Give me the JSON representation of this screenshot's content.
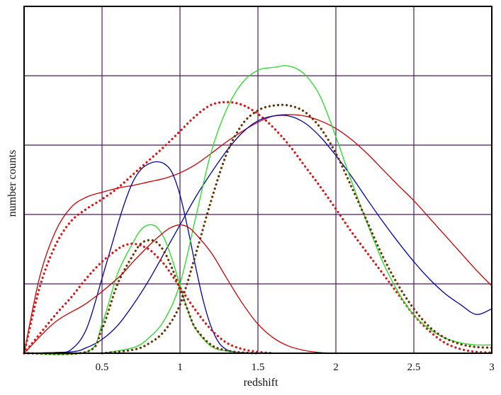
{
  "chart_data": {
    "type": "line",
    "xlabel": "redshift",
    "ylabel": "number counts",
    "xlim": [
      0,
      3
    ],
    "ylim": [
      0,
      5
    ],
    "xticks": [
      0.5,
      1,
      1.5,
      2,
      2.5,
      3
    ],
    "xtick_labels": [
      "0.5",
      "1",
      "1.5",
      "2",
      "2.5",
      "3"
    ],
    "yticks": [
      1,
      2,
      3,
      4
    ],
    "grid": true,
    "grid_color": "#4a1a5c",
    "frame_color": "#000000",
    "series": [
      {
        "color": "#cc0000",
        "style": "solid",
        "x": [
          0,
          0.1,
          0.2,
          0.3,
          0.4,
          0.5,
          0.6,
          0.7,
          0.8,
          0.9,
          1.0,
          1.1,
          1.2,
          1.3,
          1.4,
          1.5,
          1.6,
          1.7,
          1.8,
          1.9,
          2.0,
          2.1,
          2.2,
          2.3,
          2.4,
          2.5,
          2.6,
          2.7,
          2.8,
          2.9,
          3.0
        ],
        "y": [
          0,
          1.1,
          1.75,
          2.1,
          2.25,
          2.32,
          2.38,
          2.42,
          2.47,
          2.52,
          2.6,
          2.72,
          2.88,
          3.05,
          3.2,
          3.33,
          3.42,
          3.44,
          3.42,
          3.35,
          3.24,
          3.08,
          2.88,
          2.65,
          2.42,
          2.2,
          1.95,
          1.7,
          1.45,
          1.2,
          0.97
        ]
      },
      {
        "color": "#dd1111",
        "style": "dotted",
        "x": [
          0,
          0.1,
          0.2,
          0.3,
          0.4,
          0.5,
          0.6,
          0.7,
          0.8,
          0.9,
          1.0,
          1.1,
          1.2,
          1.3,
          1.4,
          1.5,
          1.6,
          1.7,
          1.8,
          1.9,
          2.0,
          2.1,
          2.2,
          2.3,
          2.4,
          2.5,
          2.6,
          2.7,
          2.8,
          2.9,
          3.0
        ],
        "y": [
          0,
          0.95,
          1.55,
          1.9,
          2.08,
          2.22,
          2.38,
          2.58,
          2.78,
          2.98,
          3.2,
          3.42,
          3.58,
          3.62,
          3.58,
          3.45,
          3.25,
          3.0,
          2.7,
          2.4,
          2.08,
          1.75,
          1.45,
          1.15,
          0.85,
          0.55,
          0.32,
          0.15,
          0.06,
          0.02,
          0.01
        ]
      },
      {
        "color": "#0000aa",
        "style": "solid",
        "x": [
          0,
          0.2,
          0.3,
          0.4,
          0.5,
          0.6,
          0.65,
          0.7,
          0.75,
          0.8,
          0.85,
          0.9,
          0.95,
          1.0,
          1.05,
          1.1,
          1.15,
          1.2,
          1.25,
          1.3,
          1.35,
          1.4,
          1.5
        ],
        "y": [
          0,
          0.01,
          0.05,
          0.35,
          1.08,
          1.85,
          2.2,
          2.48,
          2.65,
          2.73,
          2.76,
          2.73,
          2.6,
          2.28,
          1.8,
          1.25,
          0.75,
          0.38,
          0.15,
          0.05,
          0.02,
          0.01,
          0
        ]
      },
      {
        "color": "#0000aa",
        "style": "solid",
        "x": [
          0,
          0.3,
          0.4,
          0.5,
          0.6,
          0.7,
          0.8,
          0.9,
          1.0,
          1.1,
          1.2,
          1.3,
          1.4,
          1.5,
          1.6,
          1.7,
          1.8,
          1.9,
          2.0,
          2.1,
          2.2,
          2.3,
          2.4,
          2.5,
          2.6,
          2.7,
          2.8,
          2.9,
          3.0
        ],
        "y": [
          0,
          0.02,
          0.08,
          0.2,
          0.4,
          0.7,
          1.05,
          1.45,
          1.85,
          2.25,
          2.6,
          2.92,
          3.18,
          3.35,
          3.42,
          3.42,
          3.32,
          3.12,
          2.85,
          2.55,
          2.22,
          1.9,
          1.6,
          1.32,
          1.07,
          0.86,
          0.7,
          0.56,
          0.64
        ]
      },
      {
        "color": "#22dd22",
        "style": "solid",
        "x": [
          0,
          0.4,
          0.5,
          0.6,
          0.7,
          0.75,
          0.8,
          0.85,
          0.9,
          0.95,
          1.0,
          1.05,
          1.1,
          1.2,
          1.3,
          1.4,
          1.5
        ],
        "y": [
          0,
          0.02,
          0.42,
          1.15,
          1.6,
          1.78,
          1.85,
          1.82,
          1.65,
          1.35,
          0.98,
          0.62,
          0.35,
          0.1,
          0.03,
          0.01,
          0
        ]
      },
      {
        "color": "#22dd22",
        "style": "solid",
        "x": [
          0.5,
          0.7,
          0.8,
          0.9,
          1.0,
          1.1,
          1.2,
          1.3,
          1.4,
          1.5,
          1.6,
          1.7,
          1.8,
          1.9,
          2.0,
          2.1,
          2.2,
          2.3,
          2.4,
          2.5,
          2.6,
          2.7,
          2.8,
          2.9,
          3.0
        ],
        "y": [
          0,
          0.08,
          0.22,
          0.48,
          1.0,
          1.95,
          2.9,
          3.52,
          3.9,
          4.08,
          4.12,
          4.14,
          4.02,
          3.7,
          3.12,
          2.48,
          1.88,
          1.32,
          0.88,
          0.55,
          0.35,
          0.22,
          0.15,
          0.12,
          0.12
        ]
      },
      {
        "color": "#663300",
        "style": "dotted",
        "x": [
          0,
          0.4,
          0.5,
          0.6,
          0.7,
          0.75,
          0.8,
          0.85,
          0.9,
          0.95,
          1.0,
          1.05,
          1.1,
          1.2,
          1.3,
          1.4,
          1.5
        ],
        "y": [
          0,
          0.02,
          0.35,
          1.0,
          1.42,
          1.58,
          1.63,
          1.6,
          1.46,
          1.22,
          0.92,
          0.62,
          0.36,
          0.12,
          0.04,
          0.01,
          0
        ]
      },
      {
        "color": "#663300",
        "style": "dotted",
        "x": [
          0.5,
          0.7,
          0.8,
          0.9,
          1.0,
          1.1,
          1.2,
          1.3,
          1.4,
          1.5,
          1.6,
          1.7,
          1.8,
          1.9,
          2.0,
          2.1,
          2.2,
          2.3,
          2.4,
          2.5,
          2.6,
          2.7,
          2.8,
          2.9,
          3.0
        ],
        "y": [
          0,
          0.05,
          0.14,
          0.32,
          0.7,
          1.42,
          2.2,
          2.88,
          3.3,
          3.5,
          3.57,
          3.57,
          3.48,
          3.25,
          2.88,
          2.4,
          1.9,
          1.4,
          0.98,
          0.64,
          0.38,
          0.22,
          0.13,
          0.09,
          0.08
        ]
      },
      {
        "color": "#cc0000",
        "style": "solid",
        "x": [
          0,
          0.2,
          0.4,
          0.6,
          0.7,
          0.8,
          0.9,
          0.95,
          1.0,
          1.05,
          1.1,
          1.2,
          1.3,
          1.4,
          1.5,
          1.6,
          1.7,
          1.8,
          1.9,
          2.0
        ],
        "y": [
          0,
          0.45,
          0.72,
          1.08,
          1.32,
          1.55,
          1.75,
          1.82,
          1.85,
          1.82,
          1.72,
          1.45,
          1.08,
          0.72,
          0.42,
          0.22,
          0.1,
          0.04,
          0.01,
          0
        ]
      },
      {
        "color": "#dd1111",
        "style": "dotted",
        "x": [
          0,
          0.2,
          0.3,
          0.4,
          0.5,
          0.6,
          0.65,
          0.7,
          0.75,
          0.8,
          0.85,
          0.9,
          0.95,
          1.0,
          1.1,
          1.2,
          1.3,
          1.4,
          1.5,
          1.6
        ],
        "y": [
          0,
          0.55,
          0.8,
          1.08,
          1.32,
          1.5,
          1.56,
          1.58,
          1.55,
          1.5,
          1.4,
          1.28,
          1.12,
          0.95,
          0.62,
          0.34,
          0.15,
          0.06,
          0.02,
          0
        ]
      }
    ]
  }
}
